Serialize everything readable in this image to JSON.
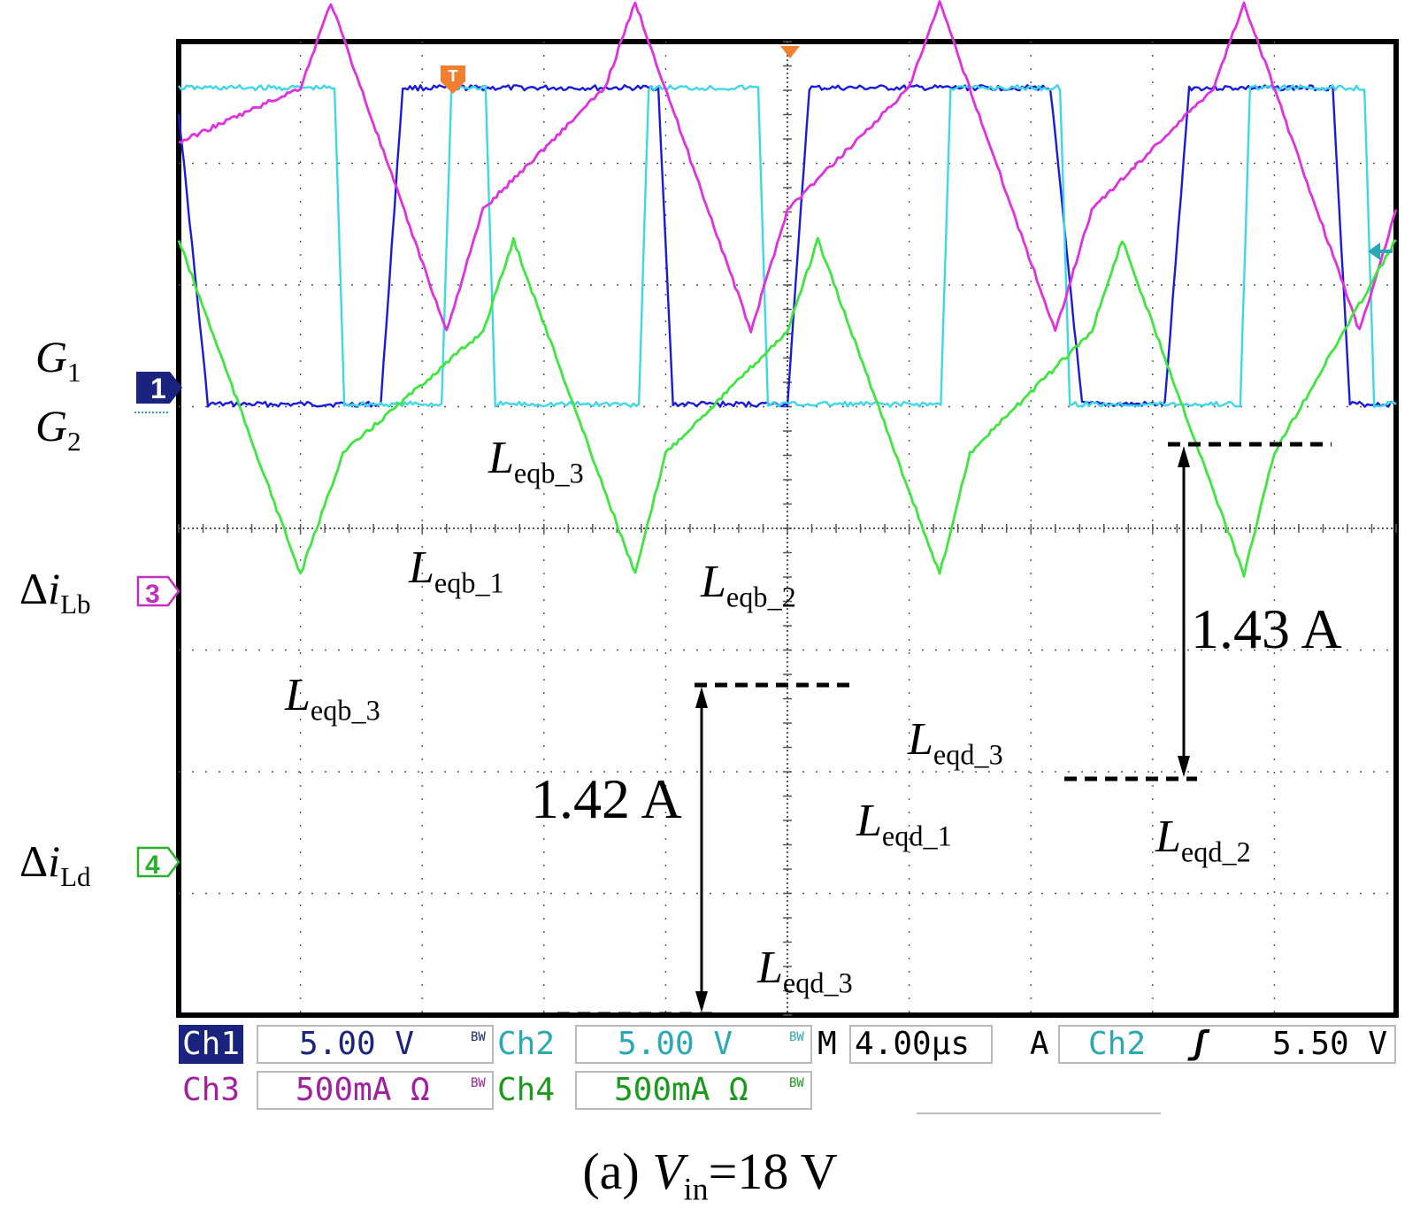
{
  "chart_data": {
    "type": "line",
    "title": "",
    "xlabel": "",
    "ylabel": "",
    "time_per_div": "4.00µs",
    "x_divisions": 10,
    "y_divisions": 8,
    "grid": true,
    "series": [
      {
        "name": "G1",
        "channel": "Ch1",
        "color": "#1a1adc",
        "scale": "5.00 V",
        "kind": "gate",
        "x": [
          0.0,
          0.24,
          0.34,
          0.5,
          0.58,
          0.84,
          0.92,
          1.1,
          1.18,
          1.58,
          1.66,
          1.84,
          1.92,
          2.34,
          2.42,
          2.54,
          2.62,
          3.08,
          3.16,
          3.34,
          3.42,
          3.86,
          3.94,
          4.06,
          4.14,
          4.58,
          4.66,
          4.92,
          5.0,
          5.18,
          5.26,
          5.66,
          5.74,
          5.92,
          6.0,
          6.34,
          6.42,
          6.5,
          6.58,
          7.08,
          7.16,
          7.42,
          7.5,
          7.66,
          7.74,
          8.02,
          8.1,
          8.3,
          8.38,
          8.66,
          8.74,
          8.88,
          8.96,
          9.4,
          9.48,
          9.62,
          9.7,
          10.0
        ],
        "divs": [
          -0.2,
          -2.6,
          -2.6,
          -2.6,
          -2.6,
          -2.6,
          -2.6,
          -2.6,
          -2.6,
          -2.6,
          -2.6,
          0.0,
          0.0,
          0.0,
          0.0,
          0.0,
          0.0,
          0.0,
          0.0,
          0.0,
          0.0,
          0.0,
          0.0,
          -2.6,
          -2.6,
          -2.6,
          -2.6,
          -2.6,
          -2.6,
          0.0,
          0.0,
          0.0,
          0.0,
          0.0,
          0.0,
          0.0,
          0.0,
          0.0,
          0.0,
          0.0,
          0.0,
          -2.6,
          -2.6,
          -2.6,
          -2.6,
          -2.6,
          -2.6,
          0.0,
          0.0,
          0.0,
          0.0,
          0.0,
          0.0,
          0.0,
          0.0,
          -2.6,
          -2.6,
          -2.6
        ]
      },
      {
        "name": "G2",
        "channel": "Ch2",
        "color": "#3fd7e6",
        "scale": "5.00 V",
        "kind": "gate",
        "x": [
          0.0,
          1.0,
          1.28,
          1.36,
          2.16,
          2.24,
          2.52,
          2.6,
          3.78,
          3.86,
          4.76,
          4.84,
          5.0,
          5.08,
          6.26,
          6.34,
          7.24,
          7.32,
          7.5,
          7.58,
          8.72,
          8.8,
          9.74,
          9.82,
          10.0
        ],
        "divs": [
          0.0,
          0.0,
          0.0,
          -2.6,
          -2.6,
          0.0,
          0.0,
          -2.6,
          -2.6,
          0.0,
          0.0,
          -2.6,
          -2.6,
          -2.6,
          -2.6,
          0.0,
          0.0,
          -2.6,
          -2.6,
          -2.6,
          -2.6,
          0.0,
          0.0,
          -2.6,
          -2.6
        ]
      },
      {
        "name": "Δi_Lb",
        "channel": "Ch3",
        "color": "#e030e0",
        "scale": "500mA Ω",
        "kind": "current",
        "x": [
          0.0,
          1.0,
          1.25,
          2.2,
          2.5,
          3.5,
          3.75,
          4.7,
          5.0,
          6.0,
          6.25,
          7.2,
          7.5,
          8.5,
          8.75,
          9.7,
          10.0
        ],
        "divs": [
          -0.45,
          0.0,
          0.7,
          -2.0,
          -1.0,
          0.0,
          0.7,
          -2.0,
          -1.0,
          0.0,
          0.7,
          -2.0,
          -1.0,
          0.0,
          0.7,
          -2.0,
          -1.0
        ],
        "annotations": [
          "Leqb_3",
          "Leqb_1",
          "Leqb_2",
          "Leqb_3"
        ]
      },
      {
        "name": "Δi_Ld",
        "channel": "Ch4",
        "color": "#3ee63e",
        "scale": "500mA Ω",
        "kind": "current",
        "x": [
          0.0,
          1.0,
          1.35,
          2.5,
          2.75,
          3.75,
          4.0,
          5.0,
          5.25,
          6.25,
          6.5,
          7.5,
          7.75,
          8.75,
          9.0,
          10.0
        ],
        "divs": [
          -1.25,
          -4.0,
          -3.0,
          -2.0,
          -1.25,
          -4.0,
          -3.0,
          -2.0,
          -1.25,
          -4.0,
          -3.0,
          -2.0,
          -1.25,
          -4.0,
          -3.0,
          -1.25
        ],
        "annotations": [
          "Leqd_3",
          "Leqd_1",
          "Leqd_2"
        ]
      }
    ],
    "measurements": [
      {
        "label": "1.42 A",
        "series": "Δi_Ld"
      },
      {
        "label": "1.43 A",
        "series": "Δi_Lb"
      }
    ]
  },
  "left_labels": [
    {
      "id": "g1",
      "sym": "G",
      "sub": "1"
    },
    {
      "id": "g2",
      "sym": "G",
      "sub": "2"
    },
    {
      "id": "ilb",
      "delta": "Δ",
      "sym": "i",
      "sub": "Lb"
    },
    {
      "id": "ild",
      "delta": "Δ",
      "sym": "i",
      "sub": "Ld"
    }
  ],
  "markers": {
    "ch1": "1",
    "ch3": "3",
    "ch4": "4",
    "trigger": "T"
  },
  "annotations": {
    "leqb3_a": {
      "sym": "L",
      "sub": "eqb_3"
    },
    "leqb1": {
      "sym": "L",
      "sub": "eqb_1"
    },
    "leqb2": {
      "sym": "L",
      "sub": "eqb_2"
    },
    "leqb3_b": {
      "sym": "L",
      "sub": "eqb_3"
    },
    "leqd3_a": {
      "sym": "L",
      "sub": "eqd_3"
    },
    "leqd1": {
      "sym": "L",
      "sub": "eqd_1"
    },
    "leqd2": {
      "sym": "L",
      "sub": "eqd_2"
    },
    "leqd3_b": {
      "sym": "L",
      "sub": "eqd_3"
    },
    "meas1": "1.42 A",
    "meas2": "1.43 A"
  },
  "status": {
    "ch1": "Ch1",
    "ch1_scale": "5.00 V",
    "ch2": "Ch2",
    "ch2_scale": "5.00 V",
    "ch3": "Ch3",
    "ch3_scale": "500mA Ω",
    "ch4": "Ch4",
    "ch4_scale": "500mA Ω",
    "bw": "BW",
    "m": "M",
    "timebase": "4.00µs",
    "a": "A",
    "trig_ch": "Ch2",
    "trig_level": "5.50 V"
  },
  "caption": {
    "prefix": "(a) ",
    "var": "V",
    "sub": "in",
    "suffix": "=18 V"
  },
  "colors": {
    "ch1": "#1a1adc",
    "ch2": "#3fd7e6",
    "ch3": "#e030e0",
    "ch4": "#3ee63e",
    "ch1_status": "#1a237e",
    "ch2_status": "#2aa9b5",
    "ch3_status": "#a020a0",
    "ch4_status": "#1a9a1a",
    "trigger": "#f08030"
  }
}
